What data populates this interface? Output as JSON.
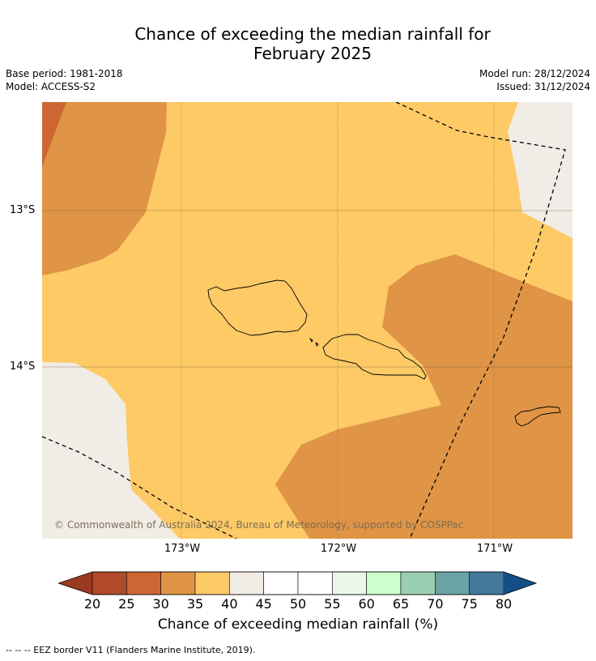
{
  "title": {
    "line1": "Chance of exceeding the median rainfall for",
    "line2": "February 2025"
  },
  "meta": {
    "base_period": "Base period: 1981-2018",
    "model": "Model: ACCESS-S2",
    "model_run": "Model run: 28/12/2024",
    "issued": "Issued: 31/12/2024"
  },
  "map": {
    "lat_labels": [
      "13°S",
      "14°S"
    ],
    "lon_labels": [
      "173°W",
      "172°W",
      "171°W"
    ],
    "copyright": "© Commonwealth of Australia 2024, Bureau of Meteorology, supported by COSPPac",
    "colors": {
      "c20_25": "#b04a28",
      "c25_30": "#cc6633",
      "c30_35": "#e09445",
      "c35_40": "#fdca66",
      "c40_45": "#f1ece5",
      "coast": "#000000"
    }
  },
  "colorbar": {
    "ticks": [
      "20",
      "25",
      "30",
      "35",
      "40",
      "45",
      "50",
      "55",
      "60",
      "65",
      "70",
      "75",
      "80"
    ],
    "colors": [
      "#b04a28",
      "#cc6633",
      "#e09445",
      "#fdca66",
      "#f1ece5",
      "#ffffff",
      "#ffffff",
      "#eaf7ea",
      "#ccffcc",
      "#9bcfb4",
      "#6ba3a5",
      "#43789b"
    ],
    "under_color": "#9a3a20",
    "over_color": "#134e87",
    "label": "Chance of exceeding median rainfall (%)"
  },
  "footer": "--  --  -- EEZ border V11 (Flanders Marine Institute, 2019)."
}
